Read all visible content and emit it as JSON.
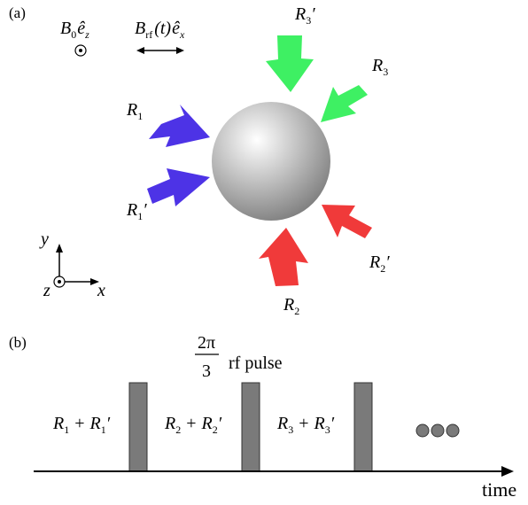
{
  "panel_a": {
    "label": "(a)",
    "b0": {
      "main": "B",
      "sub": "0",
      "vec": "ê",
      "vec_sub": "z"
    },
    "brf": {
      "main": "B",
      "sub": "rf",
      "arg": "(t)",
      "vec": "ê",
      "vec_sub": "x"
    },
    "axes": {
      "x": "x",
      "y": "y",
      "z": "z"
    },
    "beams": [
      {
        "main": "R",
        "sub": "1",
        "prime": "",
        "color": "#4d33e6"
      },
      {
        "main": "R",
        "sub": "1",
        "prime": "′",
        "color": "#4d33e6"
      },
      {
        "main": "R",
        "sub": "2",
        "prime": "",
        "color": "#f03a3a"
      },
      {
        "main": "R",
        "sub": "2",
        "prime": "′",
        "color": "#f03a3a"
      },
      {
        "main": "R",
        "sub": "3",
        "prime": "",
        "color": "#3ef063"
      },
      {
        "main": "R",
        "sub": "3",
        "prime": "′",
        "color": "#3ef063"
      }
    ]
  },
  "panel_b": {
    "label": "(b)",
    "pulse_fraction": {
      "num": "2π",
      "den": "3"
    },
    "pulse_label": "rf pulse",
    "intervals": [
      {
        "a": "R",
        "a_sub": "1",
        "op": "+",
        "b": "R",
        "b_sub": "1",
        "b_prime": "′"
      },
      {
        "a": "R",
        "a_sub": "2",
        "op": "+",
        "b": "R",
        "b_sub": "2",
        "b_prime": "′"
      },
      {
        "a": "R",
        "a_sub": "3",
        "op": "+",
        "b": "R",
        "b_sub": "3",
        "b_prime": "′"
      }
    ],
    "time_label": "time"
  }
}
